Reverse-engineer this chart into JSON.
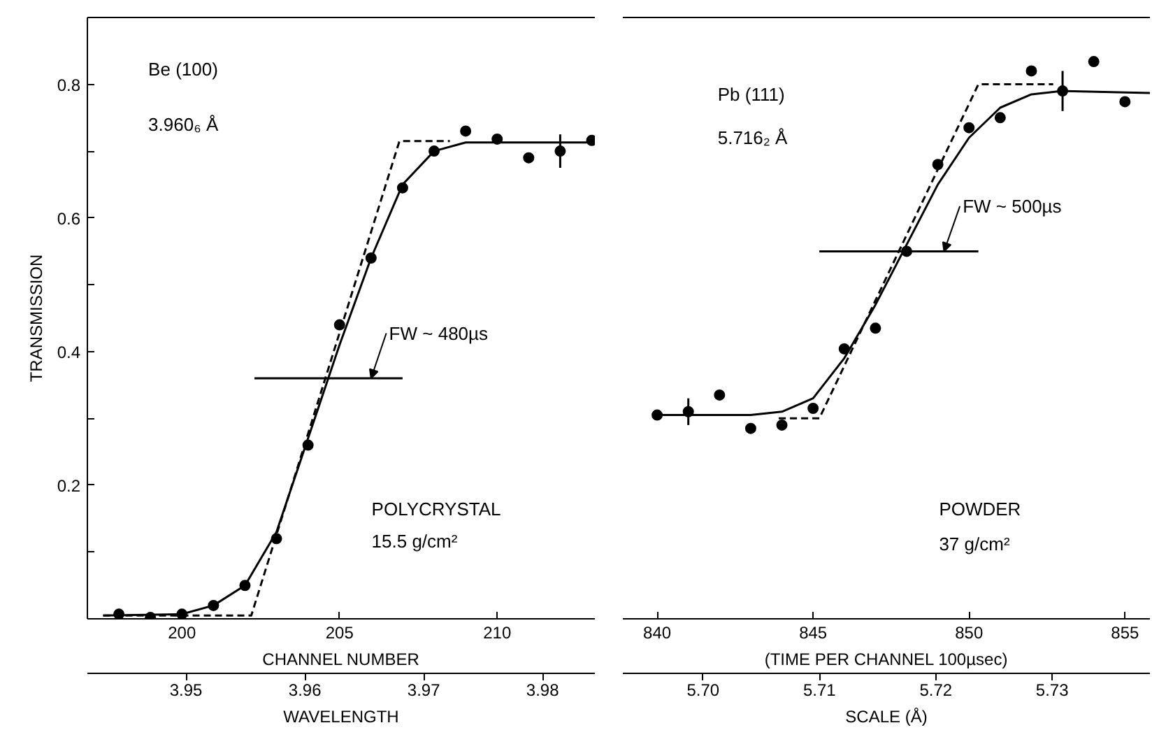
{
  "chart_data": [
    {
      "type": "scatter",
      "ylabel": "TRANSMISSION",
      "xlabel": "CHANNEL NUMBER",
      "x2label": "WAVELENGTH",
      "xlim": [
        197,
        213.1
      ],
      "xticks": [
        200,
        205,
        210
      ],
      "x2lim": [
        3.9417,
        3.9844
      ],
      "x2ticks": [
        3.95,
        3.96,
        3.97,
        3.98
      ],
      "ylim": [
        0,
        0.9
      ],
      "yticks": [
        {
          "value": 0.1,
          "label": null
        },
        0.2,
        {
          "value": 0.3,
          "label": null
        },
        0.4,
        {
          "value": 0.5,
          "label": null
        },
        0.6,
        {
          "value": 0.7,
          "label": null
        },
        0.8
      ],
      "series": [
        {
          "marker": "circle",
          "color": "#000000",
          "x": [
            198,
            199,
            200,
            201,
            202,
            203,
            204,
            205,
            206,
            207,
            208,
            209,
            210,
            211,
            212,
            213
          ],
          "values": [
            0.007,
            0.002,
            0.007,
            0.02,
            0.05,
            0.12,
            0.26,
            0.44,
            0.54,
            0.645,
            0.7,
            0.73,
            0.718,
            0.69,
            0.7,
            0.716
          ],
          "errors": [
            null,
            null,
            null,
            null,
            null,
            null,
            null,
            null,
            null,
            null,
            null,
            null,
            null,
            null,
            0.025,
            null
          ]
        },
        {
          "type": "line",
          "color": "#000000",
          "line_style": "solid",
          "x": [
            197.5,
            200,
            201,
            202,
            203,
            204,
            205,
            206,
            207,
            208,
            209,
            213
          ],
          "values": [
            0.005,
            0.007,
            0.02,
            0.05,
            0.13,
            0.27,
            0.41,
            0.54,
            0.65,
            0.7,
            0.713,
            0.713
          ]
        },
        {
          "type": "line",
          "color": "#000000",
          "line_style": "dashed",
          "x": [
            197.5,
            202.2,
            206.9,
            208.5
          ],
          "values": [
            0.005,
            0.005,
            0.715,
            0.715
          ]
        },
        {
          "type": "line",
          "color": "#000000",
          "line_style": "solid",
          "x": [
            202.3,
            207.0
          ],
          "values": [
            0.36,
            0.36
          ]
        }
      ],
      "annotations": [
        "Be (100)",
        "3.960₆ Å",
        "POLYCRYSTAL",
        "15.5 g/cm²",
        {
          "text": "FW ~ 480µs",
          "x": 206.0,
          "y": 0.36
        }
      ]
    },
    {
      "type": "scatter",
      "xlabel": "(TIME PER CHANNEL 100µsec)",
      "x2label": "SCALE (Å)",
      "tick_labels": "x",
      "xlim": [
        838.9,
        855.8
      ],
      "xticks": [
        840,
        845,
        850,
        855
      ],
      "x2lim": [
        5.6931,
        5.7384
      ],
      "x2ticks": [
        {
          "value": 5.7,
          "label": "5.70"
        },
        5.71,
        5.72,
        5.73
      ],
      "ylim": [
        0,
        0.9
      ],
      "series": [
        {
          "marker": "circle",
          "color": "#000000",
          "x": [
            840,
            841,
            842,
            843,
            844,
            845,
            846,
            847,
            848,
            849,
            850,
            851,
            852,
            853,
            854,
            855
          ],
          "values": [
            0.305,
            0.31,
            0.335,
            0.285,
            0.29,
            0.315,
            0.404,
            0.435,
            0.55,
            0.68,
            0.735,
            0.75,
            0.82,
            0.79,
            0.834,
            0.774
          ],
          "errors": [
            null,
            0.02,
            null,
            null,
            null,
            null,
            null,
            null,
            null,
            null,
            null,
            null,
            null,
            0.03,
            null,
            null
          ]
        },
        {
          "type": "line",
          "color": "#000000",
          "line_style": "solid",
          "x": [
            840,
            843,
            844,
            845,
            846,
            847,
            848,
            849,
            850,
            851,
            852,
            853,
            855.8
          ],
          "values": [
            0.305,
            0.305,
            0.31,
            0.33,
            0.39,
            0.47,
            0.56,
            0.65,
            0.72,
            0.765,
            0.785,
            0.79,
            0.787
          ]
        },
        {
          "type": "line",
          "color": "#000000",
          "line_style": "dashed",
          "x": [
            843.9,
            845.2,
            850.3,
            852.7
          ],
          "values": [
            0.3,
            0.3,
            0.8,
            0.8
          ]
        },
        {
          "type": "line",
          "color": "#000000",
          "line_style": "solid",
          "x": [
            845.2,
            850.3
          ],
          "values": [
            0.55,
            0.55
          ]
        }
      ],
      "annotations": [
        "Pb (111)",
        "5.716₂ Å",
        "POWDER",
        "37 g/cm²",
        {
          "text": "FW ~ 500µs",
          "x": 849.2,
          "y": 0.55
        }
      ]
    }
  ]
}
